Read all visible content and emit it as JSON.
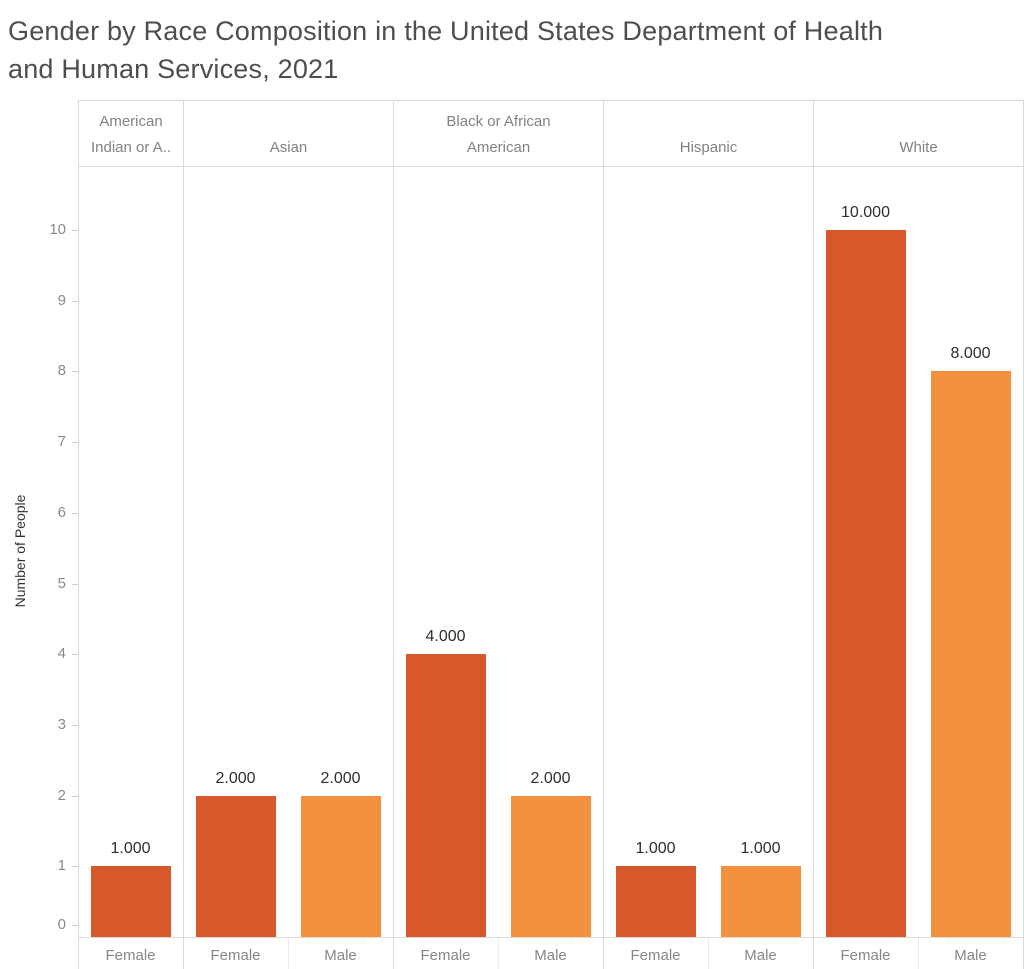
{
  "page": {
    "title_line1": "Gender by Race Composition in the United States Department of Health",
    "title_line2": "and Human Services, 2021"
  },
  "colors": {
    "female_bar": "#d6582b",
    "male_bar": "#f3913e",
    "grid_line": "#d9d9d9",
    "gender_divider_line": "#eaeaea",
    "title_text": "#4e4e4e",
    "header_text": "#828282",
    "tick_text": "#8a8a8a",
    "data_label_text": "#2e2e2e"
  },
  "chart_data": {
    "type": "bar",
    "title": "Gender by Race Composition in the United States Department of Health and Human Services, 2021",
    "ylabel": "Number of People",
    "xlabel": "",
    "ylim": [
      0,
      10.9
    ],
    "yticks": [
      0,
      1,
      2,
      3,
      4,
      5,
      6,
      7,
      8,
      9,
      10
    ],
    "grid": false,
    "legend_position": "none",
    "series_colors": {
      "Female": "#d6582b",
      "Male": "#f3913e"
    },
    "panels": [
      {
        "race_header_lines": [
          "American",
          "Indian or A.."
        ],
        "bars": [
          {
            "gender": "Female",
            "value": 1,
            "label": "1.000"
          }
        ]
      },
      {
        "race_header_lines": [
          "Asian"
        ],
        "bars": [
          {
            "gender": "Female",
            "value": 2,
            "label": "2.000"
          },
          {
            "gender": "Male",
            "value": 2,
            "label": "2.000"
          }
        ]
      },
      {
        "race_header_lines": [
          "Black or African",
          "American"
        ],
        "bars": [
          {
            "gender": "Female",
            "value": 4,
            "label": "4.000"
          },
          {
            "gender": "Male",
            "value": 2,
            "label": "2.000"
          }
        ]
      },
      {
        "race_header_lines": [
          "Hispanic"
        ],
        "bars": [
          {
            "gender": "Female",
            "value": 1,
            "label": "1.000"
          },
          {
            "gender": "Male",
            "value": 1,
            "label": "1.000"
          }
        ]
      },
      {
        "race_header_lines": [
          "White"
        ],
        "bars": [
          {
            "gender": "Female",
            "value": 10,
            "label": "10.000"
          },
          {
            "gender": "Male",
            "value": 8,
            "label": "8.000"
          }
        ]
      }
    ]
  }
}
